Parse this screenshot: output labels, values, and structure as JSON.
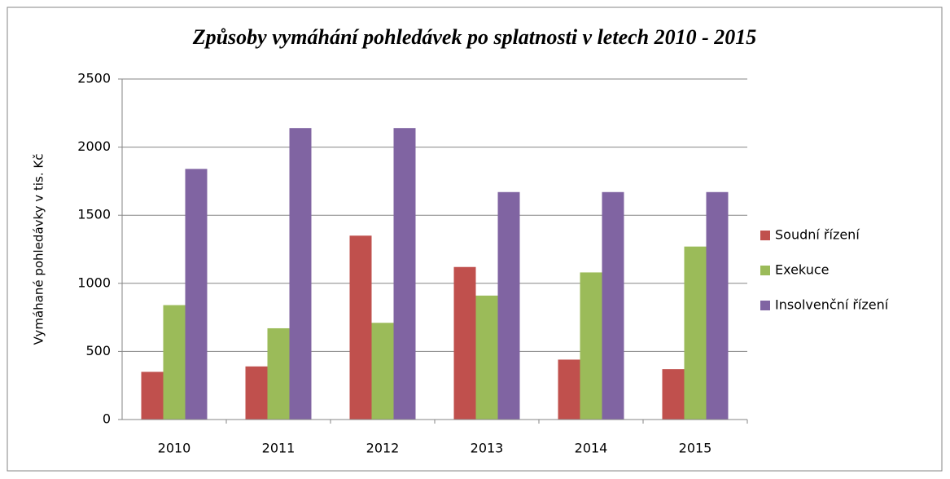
{
  "chart_data": {
    "type": "bar",
    "title": "Způsoby vymáhání pohledávek po splatnosti v letech 2010 - 2015",
    "y_label": "Vymáhané pohledávky v tis. Kč",
    "categories": [
      "2010",
      "2011",
      "2012",
      "2013",
      "2014",
      "2015"
    ],
    "series": [
      {
        "name": "Soudní řízení",
        "color": "#c0504d",
        "values": [
          350,
          390,
          1350,
          1120,
          440,
          370
        ]
      },
      {
        "name": "Exekuce",
        "color": "#9bbb59",
        "values": [
          840,
          670,
          710,
          910,
          1080,
          1270
        ]
      },
      {
        "name": "Insolvenční řízení",
        "color": "#8064a2",
        "values": [
          1840,
          2140,
          2140,
          1670,
          1670,
          1670
        ]
      }
    ],
    "ylim": [
      0,
      2500
    ],
    "yticks": [
      0,
      500,
      1000,
      1500,
      2000,
      2500
    ],
    "grid": true,
    "legend": "right"
  }
}
